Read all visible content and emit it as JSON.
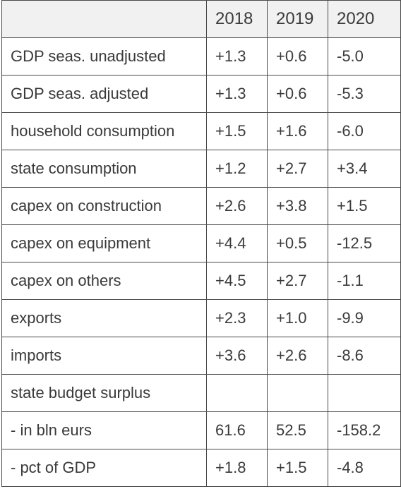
{
  "table": {
    "columns": [
      "",
      "2018",
      "2019",
      "2020"
    ],
    "rows": [
      {
        "label": "GDP seas. unadjusted",
        "values": [
          "+1.3",
          "+0.6",
          "-5.0"
        ]
      },
      {
        "label": "GDP seas. adjusted",
        "values": [
          "+1.3",
          "+0.6",
          "-5.3"
        ]
      },
      {
        "label": "household consumption",
        "values": [
          "+1.5",
          "+1.6",
          "-6.0"
        ]
      },
      {
        "label": "state consumption",
        "values": [
          "+1.2",
          "+2.7",
          "+3.4"
        ]
      },
      {
        "label": "capex on construction",
        "values": [
          "+2.6",
          "+3.8",
          "+1.5"
        ]
      },
      {
        "label": "capex on equipment",
        "values": [
          "+4.4",
          "+0.5",
          "-12.5"
        ]
      },
      {
        "label": "capex on others",
        "values": [
          "+4.5",
          "+2.7",
          "-1.1"
        ]
      },
      {
        "label": "exports",
        "values": [
          "+2.3",
          "+1.0",
          "-9.9"
        ]
      },
      {
        "label": "imports",
        "values": [
          "+3.6",
          "+2.6",
          "-8.6"
        ]
      },
      {
        "label": "state budget surplus",
        "values": [
          "",
          "",
          ""
        ]
      },
      {
        "label": "- in bln eurs",
        "values": [
          "61.6",
          "52.5",
          "-158.2"
        ]
      },
      {
        "label": "- pct of GDP",
        "values": [
          "+1.8",
          "+1.5",
          "-4.8"
        ]
      }
    ]
  },
  "colors": {
    "border": "#4a4a4a",
    "header_background": "#f1f1f1",
    "text": "#3a3a3a"
  }
}
